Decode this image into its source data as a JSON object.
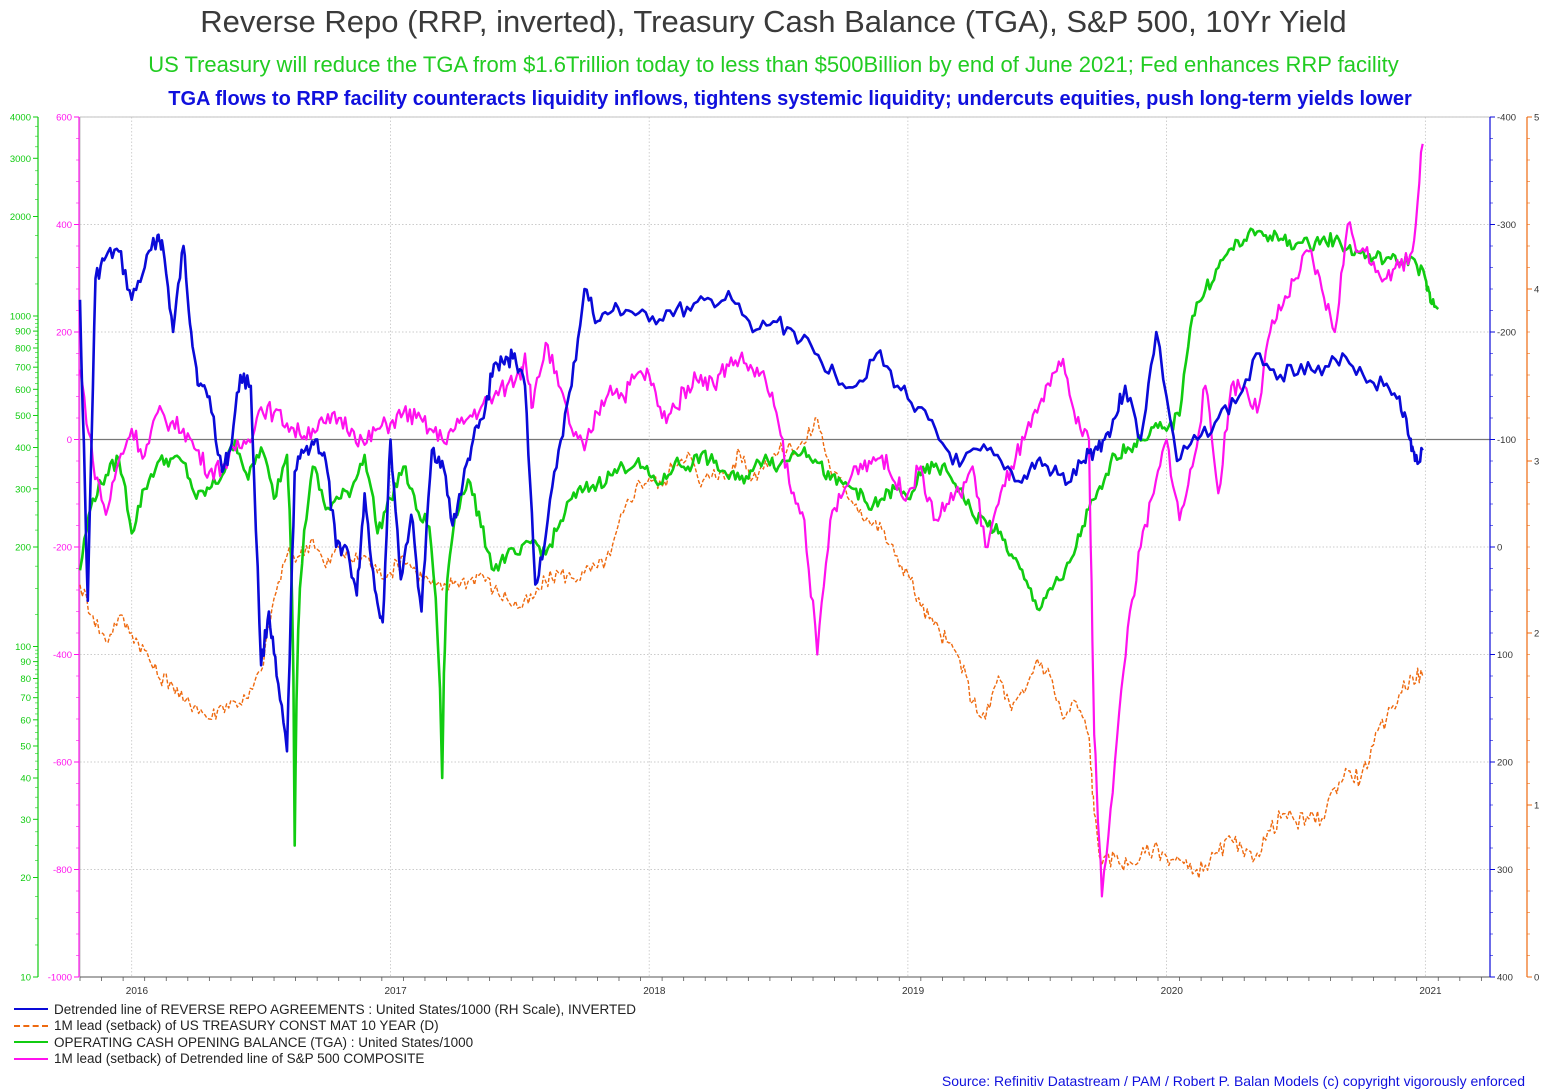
{
  "titles": {
    "main": "Reverse Repo (RRP, inverted), Treasury Cash Balance (TGA), S&P 500, 10Yr Yield",
    "sub1": "US Treasury will reduce the TGA from $1.6Trillion today to less than $500Billion by end of June 2021; Fed enhances RRP facility",
    "sub2": "TGA flows to RRP facility counteracts liquidity inflows, tightens systemic liquidity; undercuts equities, push long-term yields lower"
  },
  "source": "Source: Refinitiv Datastream /  PAM / Robert P. Balan Models (c) copyright vigorously enforced",
  "colors": {
    "rrp": "#0a0ad8",
    "yield": "#ee6a10",
    "tga": "#11cc11",
    "spx": "#ff11ee",
    "zero_line": "#777777",
    "grid": "#bbbbbb"
  },
  "chart_data": {
    "type": "line",
    "x_range": [
      "2015-10-20",
      "2021-03-30"
    ],
    "x_ticks": [
      "2016",
      "2017",
      "2018",
      "2019",
      "2020",
      "2021"
    ],
    "axes": {
      "tga_left_log": {
        "scale": "log",
        "range": [
          10,
          4000
        ],
        "major_ticks": [
          "10",
          "20",
          "30",
          "40",
          "50",
          "60",
          "70",
          "80",
          "90",
          "100",
          "200",
          "300",
          "400",
          "500",
          "600",
          "700",
          "800",
          "900",
          "1000",
          "2000",
          "3000",
          "4000"
        ],
        "color": "#11cc11"
      },
      "spx_left": {
        "range": [
          -1000,
          600
        ],
        "ticks": [
          "-1000",
          "-800",
          "-600",
          "-400",
          "-200",
          "0",
          "200",
          "400",
          "600"
        ],
        "color": "#ff11ee"
      },
      "rrp_right_inverted": {
        "range": [
          400,
          -400
        ],
        "ticks": [
          "-400",
          "-300",
          "-200",
          "-100",
          "0",
          "100",
          "200",
          "300",
          "400"
        ],
        "color": "#0a0ad8"
      },
      "yield_right": {
        "range": [
          0,
          5
        ],
        "ticks": [
          "0",
          "1",
          "2",
          "3",
          "4",
          "5"
        ],
        "color": "#ee6a10"
      }
    },
    "series": [
      {
        "key": "rrp",
        "name": "Detrended line of REVERSE REPO AGREEMENTS : United States/1000 (RH Scale), INVERTED",
        "axis": "rrp_right_inverted",
        "style": "solid",
        "x": [
          2015.8,
          2015.83,
          2015.86,
          2015.9,
          2015.95,
          2016.0,
          2016.05,
          2016.1,
          2016.12,
          2016.16,
          2016.2,
          2016.23,
          2016.26,
          2016.3,
          2016.35,
          2016.38,
          2016.42,
          2016.46,
          2016.5,
          2016.53,
          2016.56,
          2016.6,
          2016.63,
          2016.67,
          2016.71,
          2016.75,
          2016.79,
          2016.83,
          2016.87,
          2016.9,
          2016.94,
          2016.97,
          2017.0,
          2017.04,
          2017.08,
          2017.12,
          2017.16,
          2017.2,
          2017.24,
          2017.28,
          2017.32,
          2017.36,
          2017.4,
          2017.44,
          2017.48,
          2017.52,
          2017.56,
          2017.6,
          2017.65,
          2017.7,
          2017.75,
          2017.8,
          2017.86,
          2017.92,
          2018.0,
          2018.08,
          2018.16,
          2018.24,
          2018.32,
          2018.4,
          2018.48,
          2018.56,
          2018.64,
          2018.72,
          2018.8,
          2018.88,
          2018.96,
          2019.04,
          2019.12,
          2019.2,
          2019.28,
          2019.36,
          2019.44,
          2019.5,
          2019.56,
          2019.62,
          2019.68,
          2019.72,
          2019.76,
          2019.8,
          2019.84,
          2019.9,
          2019.96,
          2020.04,
          2020.12,
          2020.2,
          2020.28,
          2020.36,
          2020.44,
          2020.52,
          2020.6,
          2020.68,
          2020.76,
          2020.84,
          2020.9,
          2020.94,
          2020.96,
          2020.99
        ],
        "y": [
          -230,
          50,
          -250,
          -270,
          -275,
          -230,
          -260,
          -290,
          -280,
          -200,
          -280,
          -200,
          -150,
          -140,
          -70,
          -90,
          -160,
          -150,
          110,
          60,
          120,
          190,
          -70,
          -90,
          -100,
          -80,
          0,
          0,
          45,
          -50,
          40,
          70,
          -100,
          30,
          -30,
          60,
          -90,
          -80,
          -20,
          -60,
          -100,
          -120,
          -170,
          -170,
          -180,
          -150,
          35,
          -10,
          -90,
          -150,
          -240,
          -210,
          -220,
          -220,
          -210,
          -220,
          -220,
          -230,
          -230,
          -200,
          -210,
          -200,
          -180,
          -160,
          -150,
          -180,
          -150,
          -130,
          -100,
          -75,
          -90,
          -80,
          -60,
          -80,
          -70,
          -60,
          -80,
          -90,
          -100,
          -120,
          -150,
          -100,
          -200,
          -80,
          -100,
          -120,
          -140,
          -180,
          -160,
          -170,
          -160,
          -180,
          -160,
          -150,
          -140,
          -100,
          -80,
          -90
        ]
      },
      {
        "key": "yield",
        "name": "1M lead (setback) of US TREASURY CONST MAT 10 YEAR (D)",
        "axis": "yield_right",
        "style": "dashed",
        "x": [
          2015.8,
          2015.85,
          2015.9,
          2015.95,
          2016.0,
          2016.05,
          2016.1,
          2016.15,
          2016.2,
          2016.25,
          2016.3,
          2016.35,
          2016.4,
          2016.45,
          2016.5,
          2016.55,
          2016.6,
          2016.65,
          2016.7,
          2016.75,
          2016.8,
          2016.85,
          2016.9,
          2016.95,
          2017.0,
          2017.05,
          2017.1,
          2017.15,
          2017.2,
          2017.25,
          2017.3,
          2017.35,
          2017.4,
          2017.45,
          2017.5,
          2017.55,
          2017.6,
          2017.65,
          2017.7,
          2017.75,
          2017.8,
          2017.85,
          2017.9,
          2017.95,
          2018.0,
          2018.05,
          2018.1,
          2018.15,
          2018.2,
          2018.25,
          2018.3,
          2018.35,
          2018.4,
          2018.45,
          2018.5,
          2018.55,
          2018.6,
          2018.65,
          2018.7,
          2018.75,
          2018.8,
          2018.85,
          2018.9,
          2018.95,
          2019.0,
          2019.05,
          2019.1,
          2019.15,
          2019.2,
          2019.25,
          2019.3,
          2019.35,
          2019.4,
          2019.45,
          2019.5,
          2019.55,
          2019.6,
          2019.65,
          2019.7,
          2019.72,
          2019.75,
          2019.8,
          2019.85,
          2019.9,
          2019.95,
          2020.0,
          2020.05,
          2020.1,
          2020.15,
          2020.2,
          2020.25,
          2020.3,
          2020.35,
          2020.4,
          2020.45,
          2020.5,
          2020.55,
          2020.6,
          2020.65,
          2020.7,
          2020.75,
          2020.8,
          2020.85,
          2020.9,
          2020.95,
          2020.99
        ],
        "y": [
          2.28,
          2.1,
          1.95,
          2.1,
          2.0,
          1.9,
          1.75,
          1.72,
          1.6,
          1.58,
          1.5,
          1.58,
          1.6,
          1.62,
          1.78,
          2.2,
          2.45,
          2.45,
          2.55,
          2.38,
          2.5,
          2.42,
          2.45,
          2.35,
          2.35,
          2.45,
          2.35,
          2.3,
          2.25,
          2.3,
          2.3,
          2.35,
          2.25,
          2.2,
          2.15,
          2.2,
          2.3,
          2.35,
          2.32,
          2.35,
          2.38,
          2.45,
          2.7,
          2.85,
          2.9,
          2.85,
          3.0,
          3.05,
          2.85,
          2.95,
          2.9,
          3.05,
          2.9,
          3.0,
          3.05,
          3.08,
          3.1,
          3.25,
          2.95,
          2.85,
          2.75,
          2.65,
          2.6,
          2.45,
          2.35,
          2.15,
          2.05,
          1.95,
          1.85,
          1.6,
          1.5,
          1.75,
          1.55,
          1.65,
          1.85,
          1.75,
          1.5,
          1.6,
          1.4,
          0.95,
          0.65,
          0.7,
          0.65,
          0.7,
          0.75,
          0.7,
          0.68,
          0.6,
          0.65,
          0.72,
          0.8,
          0.7,
          0.72,
          0.85,
          0.95,
          0.9,
          0.92,
          0.92,
          1.1,
          1.2,
          1.15,
          1.35,
          1.5,
          1.65,
          1.75,
          1.75
        ]
      },
      {
        "key": "tga",
        "name": "OPERATING CASH OPENING BALANCE (TGA) : United States/1000",
        "axis": "tga_left_log",
        "style": "solid",
        "x": [
          2015.8,
          2015.85,
          2015.9,
          2015.95,
          2016.0,
          2016.05,
          2016.1,
          2016.15,
          2016.2,
          2016.25,
          2016.3,
          2016.35,
          2016.4,
          2016.45,
          2016.5,
          2016.55,
          2016.6,
          2016.63,
          2016.65,
          2016.7,
          2016.75,
          2016.8,
          2016.85,
          2016.9,
          2016.95,
          2017.0,
          2017.05,
          2017.1,
          2017.15,
          2017.2,
          2017.22,
          2017.25,
          2017.3,
          2017.35,
          2017.4,
          2017.45,
          2017.5,
          2017.55,
          2017.6,
          2017.65,
          2017.7,
          2017.75,
          2017.8,
          2017.85,
          2017.9,
          2017.95,
          2018.0,
          2018.05,
          2018.1,
          2018.15,
          2018.2,
          2018.25,
          2018.3,
          2018.35,
          2018.4,
          2018.45,
          2018.5,
          2018.55,
          2018.6,
          2018.65,
          2018.7,
          2018.75,
          2018.8,
          2018.85,
          2018.9,
          2018.95,
          2019.0,
          2019.05,
          2019.1,
          2019.15,
          2019.2,
          2019.25,
          2019.3,
          2019.35,
          2019.4,
          2019.45,
          2019.5,
          2019.55,
          2019.6,
          2019.65,
          2019.7,
          2019.75,
          2019.8,
          2019.85,
          2019.9,
          2019.95,
          2020.0,
          2020.05,
          2020.1,
          2020.15,
          2020.2,
          2020.25,
          2020.3,
          2020.35,
          2020.4,
          2020.45,
          2020.5,
          2020.55,
          2020.6,
          2020.65,
          2020.7,
          2020.75,
          2020.8,
          2020.85,
          2020.9,
          2020.95,
          2021.0,
          2021.02,
          2021.05
        ],
        "y": [
          170,
          280,
          330,
          370,
          220,
          300,
          360,
          370,
          360,
          280,
          300,
          330,
          420,
          320,
          400,
          280,
          380,
          25,
          150,
          350,
          260,
          280,
          300,
          380,
          220,
          280,
          350,
          260,
          230,
          40,
          160,
          250,
          320,
          230,
          170,
          190,
          190,
          210,
          190,
          230,
          280,
          300,
          310,
          330,
          350,
          360,
          330,
          310,
          360,
          350,
          380,
          360,
          330,
          320,
          340,
          380,
          350,
          380,
          400,
          360,
          320,
          310,
          300,
          260,
          280,
          300,
          280,
          330,
          350,
          340,
          300,
          250,
          240,
          220,
          190,
          160,
          130,
          150,
          160,
          200,
          260,
          300,
          380,
          400,
          420,
          460,
          450,
          500,
          1000,
          1200,
          1400,
          1600,
          1700,
          1800,
          1750,
          1700,
          1650,
          1650,
          1700,
          1700,
          1600,
          1550,
          1500,
          1500,
          1450,
          1500,
          1300,
          1100,
          1050
        ]
      },
      {
        "key": "spx",
        "name": "1M lead (setback) of Detrended line of S&P 500 COMPOSITE",
        "axis": "spx_left",
        "style": "solid",
        "x": [
          2015.8,
          2015.85,
          2015.9,
          2015.95,
          2016.0,
          2016.05,
          2016.1,
          2016.15,
          2016.2,
          2016.25,
          2016.3,
          2016.35,
          2016.4,
          2016.45,
          2016.5,
          2016.55,
          2016.6,
          2016.65,
          2016.7,
          2016.75,
          2016.8,
          2016.85,
          2016.9,
          2016.95,
          2017.0,
          2017.05,
          2017.1,
          2017.15,
          2017.2,
          2017.25,
          2017.3,
          2017.35,
          2017.4,
          2017.45,
          2017.5,
          2017.52,
          2017.55,
          2017.6,
          2017.65,
          2017.7,
          2017.75,
          2017.8,
          2017.85,
          2017.9,
          2017.95,
          2018.0,
          2018.05,
          2018.1,
          2018.15,
          2018.2,
          2018.25,
          2018.3,
          2018.35,
          2018.4,
          2018.45,
          2018.5,
          2018.55,
          2018.6,
          2018.65,
          2018.7,
          2018.75,
          2018.8,
          2018.85,
          2018.9,
          2018.95,
          2019.0,
          2019.05,
          2019.1,
          2019.15,
          2019.2,
          2019.25,
          2019.3,
          2019.35,
          2019.4,
          2019.45,
          2019.5,
          2019.55,
          2019.6,
          2019.65,
          2019.7,
          2019.72,
          2019.75,
          2019.8,
          2019.85,
          2019.9,
          2019.95,
          2020.0,
          2020.05,
          2020.1,
          2020.15,
          2020.2,
          2020.25,
          2020.3,
          2020.35,
          2020.4,
          2020.45,
          2020.5,
          2020.55,
          2020.6,
          2020.65,
          2020.7,
          2020.75,
          2020.8,
          2020.85,
          2020.9,
          2020.95,
          2020.99
        ],
        "y": [
          130,
          -40,
          -140,
          -40,
          20,
          -30,
          50,
          30,
          20,
          -20,
          -60,
          -50,
          -20,
          0,
          60,
          50,
          30,
          10,
          20,
          30,
          40,
          20,
          -10,
          20,
          30,
          50,
          40,
          20,
          0,
          20,
          40,
          60,
          80,
          100,
          120,
          160,
          60,
          180,
          100,
          20,
          -20,
          50,
          100,
          80,
          120,
          120,
          40,
          60,
          100,
          120,
          100,
          140,
          150,
          130,
          110,
          30,
          -100,
          -150,
          -400,
          -150,
          -100,
          -50,
          -40,
          -30,
          -80,
          -100,
          -50,
          -150,
          -120,
          -100,
          -50,
          -200,
          -120,
          -50,
          0,
          50,
          100,
          150,
          30,
          0,
          -550,
          -850,
          -600,
          -350,
          -200,
          -100,
          0,
          -150,
          -50,
          100,
          -100,
          100,
          100,
          50,
          200,
          250,
          300,
          350,
          280,
          200,
          400,
          350,
          330,
          300,
          320,
          350,
          550
        ]
      }
    ]
  }
}
